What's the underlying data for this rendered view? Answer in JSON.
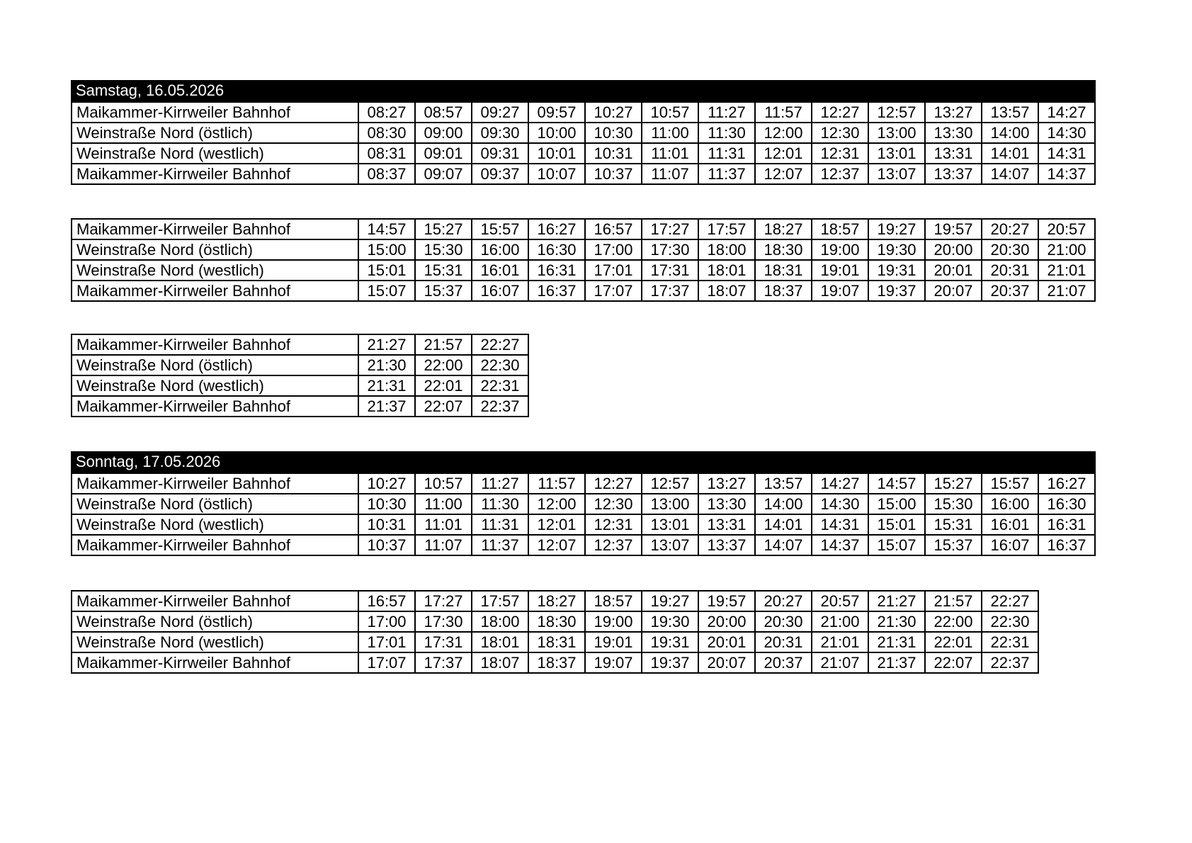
{
  "colors": {
    "page_bg": "#ffffff",
    "header_bg": "#000000",
    "header_text": "#ffffff",
    "border": "#000000",
    "cell_text": "#000000"
  },
  "sections": [
    {
      "title": "Samstag, 16.05.2026",
      "blocks": [
        {
          "rows": [
            {
              "stop": "Maikammer-Kirrweiler Bahnhof",
              "times": [
                "08:27",
                "08:57",
                "09:27",
                "09:57",
                "10:27",
                "10:57",
                "11:27",
                "11:57",
                "12:27",
                "12:57",
                "13:27",
                "13:57",
                "14:27"
              ]
            },
            {
              "stop": "Weinstraße Nord (östlich)",
              "times": [
                "08:30",
                "09:00",
                "09:30",
                "10:00",
                "10:30",
                "11:00",
                "11:30",
                "12:00",
                "12:30",
                "13:00",
                "13:30",
                "14:00",
                "14:30"
              ]
            },
            {
              "stop": "Weinstraße Nord (westlich)",
              "times": [
                "08:31",
                "09:01",
                "09:31",
                "10:01",
                "10:31",
                "11:01",
                "11:31",
                "12:01",
                "12:31",
                "13:01",
                "13:31",
                "14:01",
                "14:31"
              ]
            },
            {
              "stop": "Maikammer-Kirrweiler Bahnhof",
              "times": [
                "08:37",
                "09:07",
                "09:37",
                "10:07",
                "10:37",
                "11:07",
                "11:37",
                "12:07",
                "12:37",
                "13:07",
                "13:37",
                "14:07",
                "14:37"
              ]
            }
          ]
        },
        {
          "rows": [
            {
              "stop": "Maikammer-Kirrweiler Bahnhof",
              "times": [
                "14:57",
                "15:27",
                "15:57",
                "16:27",
                "16:57",
                "17:27",
                "17:57",
                "18:27",
                "18:57",
                "19:27",
                "19:57",
                "20:27",
                "20:57"
              ]
            },
            {
              "stop": "Weinstraße Nord (östlich)",
              "times": [
                "15:00",
                "15:30",
                "16:00",
                "16:30",
                "17:00",
                "17:30",
                "18:00",
                "18:30",
                "19:00",
                "19:30",
                "20:00",
                "20:30",
                "21:00"
              ]
            },
            {
              "stop": "Weinstraße Nord (westlich)",
              "times": [
                "15:01",
                "15:31",
                "16:01",
                "16:31",
                "17:01",
                "17:31",
                "18:01",
                "18:31",
                "19:01",
                "19:31",
                "20:01",
                "20:31",
                "21:01"
              ]
            },
            {
              "stop": "Maikammer-Kirrweiler Bahnhof",
              "times": [
                "15:07",
                "15:37",
                "16:07",
                "16:37",
                "17:07",
                "17:37",
                "18:07",
                "18:37",
                "19:07",
                "19:37",
                "20:07",
                "20:37",
                "21:07"
              ]
            }
          ]
        },
        {
          "rows": [
            {
              "stop": "Maikammer-Kirrweiler Bahnhof",
              "times": [
                "21:27",
                "21:57",
                "22:27"
              ]
            },
            {
              "stop": "Weinstraße Nord (östlich)",
              "times": [
                "21:30",
                "22:00",
                "22:30"
              ]
            },
            {
              "stop": "Weinstraße Nord (westlich)",
              "times": [
                "21:31",
                "22:01",
                "22:31"
              ]
            },
            {
              "stop": "Maikammer-Kirrweiler Bahnhof",
              "times": [
                "21:37",
                "22:07",
                "22:37"
              ]
            }
          ]
        }
      ]
    },
    {
      "title": "Sonntag, 17.05.2026",
      "blocks": [
        {
          "rows": [
            {
              "stop": "Maikammer-Kirrweiler Bahnhof",
              "times": [
                "10:27",
                "10:57",
                "11:27",
                "11:57",
                "12:27",
                "12:57",
                "13:27",
                "13:57",
                "14:27",
                "14:57",
                "15:27",
                "15:57",
                "16:27"
              ]
            },
            {
              "stop": "Weinstraße Nord (östlich)",
              "times": [
                "10:30",
                "11:00",
                "11:30",
                "12:00",
                "12:30",
                "13:00",
                "13:30",
                "14:00",
                "14:30",
                "15:00",
                "15:30",
                "16:00",
                "16:30"
              ]
            },
            {
              "stop": "Weinstraße Nord (westlich)",
              "times": [
                "10:31",
                "11:01",
                "11:31",
                "12:01",
                "12:31",
                "13:01",
                "13:31",
                "14:01",
                "14:31",
                "15:01",
                "15:31",
                "16:01",
                "16:31"
              ]
            },
            {
              "stop": "Maikammer-Kirrweiler Bahnhof",
              "times": [
                "10:37",
                "11:07",
                "11:37",
                "12:07",
                "12:37",
                "13:07",
                "13:37",
                "14:07",
                "14:37",
                "15:07",
                "15:37",
                "16:07",
                "16:37"
              ]
            }
          ]
        },
        {
          "rows": [
            {
              "stop": "Maikammer-Kirrweiler Bahnhof",
              "times": [
                "16:57",
                "17:27",
                "17:57",
                "18:27",
                "18:57",
                "19:27",
                "19:57",
                "20:27",
                "20:57",
                "21:27",
                "21:57",
                "22:27"
              ]
            },
            {
              "stop": "Weinstraße Nord (östlich)",
              "times": [
                "17:00",
                "17:30",
                "18:00",
                "18:30",
                "19:00",
                "19:30",
                "20:00",
                "20:30",
                "21:00",
                "21:30",
                "22:00",
                "22:30"
              ]
            },
            {
              "stop": "Weinstraße Nord (westlich)",
              "times": [
                "17:01",
                "17:31",
                "18:01",
                "18:31",
                "19:01",
                "19:31",
                "20:01",
                "20:31",
                "21:01",
                "21:31",
                "22:01",
                "22:31"
              ]
            },
            {
              "stop": "Maikammer-Kirrweiler Bahnhof",
              "times": [
                "17:07",
                "17:37",
                "18:07",
                "18:37",
                "19:07",
                "19:37",
                "20:07",
                "20:37",
                "21:07",
                "21:37",
                "22:07",
                "22:37"
              ]
            }
          ]
        }
      ]
    }
  ]
}
